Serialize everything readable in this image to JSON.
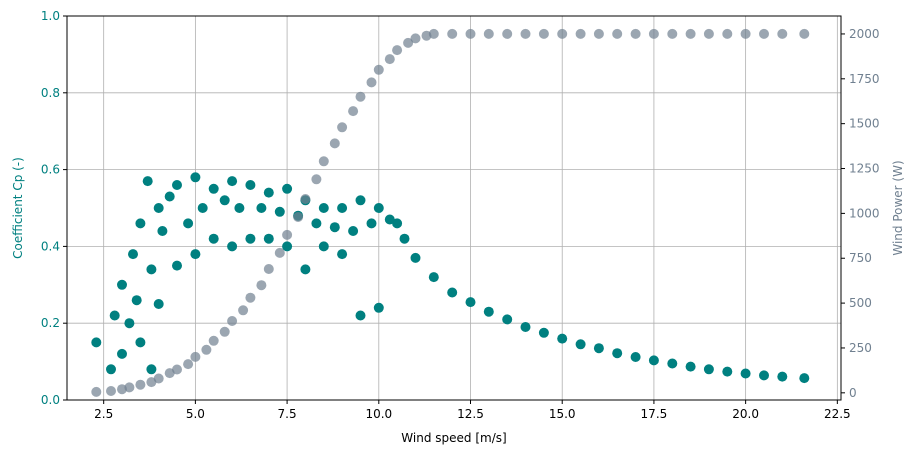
{
  "chart_data": {
    "type": "scatter",
    "title": "",
    "xlabel": "Wind speed [m/s]",
    "ylabel_left": "Coefficient Cp (-)",
    "ylabel_right": "Wind Power (W)",
    "xlim": [
      1.5,
      22.6
    ],
    "ylim_left": [
      0,
      1
    ],
    "ylim_right": [
      -40,
      2100
    ],
    "xticks": [
      "2.5",
      "5.0",
      "7.5",
      "10.0",
      "12.5",
      "15.0",
      "17.5",
      "20.0",
      "22.5"
    ],
    "yticks_left": [
      "0.0",
      "0.2",
      "0.4",
      "0.6",
      "0.8",
      "1.0"
    ],
    "yticks_right": [
      "0",
      "250",
      "500",
      "750",
      "1000",
      "1250",
      "1500",
      "1750",
      "2000"
    ],
    "grid": true,
    "colors": {
      "cp_series": "#008080",
      "power_series": "#708090",
      "left_axis": "#008080",
      "right_axis": "#708090"
    },
    "series": [
      {
        "axis": "left",
        "color": "#008080",
        "x": [
          2.3,
          2.7,
          2.8,
          3.0,
          3.0,
          3.2,
          3.3,
          3.4,
          3.5,
          3.5,
          3.7,
          3.8,
          3.8,
          4.0,
          4.0,
          4.1,
          4.3,
          4.5,
          4.5,
          4.8,
          5.0,
          5.0,
          5.2,
          5.5,
          5.5,
          5.8,
          6.0,
          6.0,
          6.2,
          6.5,
          6.5,
          6.8,
          7.0,
          7.0,
          7.3,
          7.5,
          7.5,
          7.8,
          8.0,
          8.0,
          8.3,
          8.5,
          8.5,
          8.8,
          9.0,
          9.0,
          9.3,
          9.5,
          9.5,
          9.8,
          10.0,
          10.0,
          10.3,
          10.5,
          10.7,
          11.0,
          11.5,
          12.0,
          12.5,
          13.0,
          13.5,
          14.0,
          14.5,
          15.0,
          15.5,
          16.0,
          16.5,
          17.0,
          17.5,
          18.0,
          18.5,
          19.0,
          19.5,
          20.0,
          20.5,
          21.0,
          21.6
        ],
        "y": [
          0.15,
          0.08,
          0.22,
          0.12,
          0.3,
          0.2,
          0.38,
          0.26,
          0.46,
          0.15,
          0.57,
          0.34,
          0.08,
          0.5,
          0.25,
          0.44,
          0.53,
          0.35,
          0.56,
          0.46,
          0.58,
          0.38,
          0.5,
          0.55,
          0.42,
          0.52,
          0.57,
          0.4,
          0.5,
          0.56,
          0.42,
          0.5,
          0.54,
          0.42,
          0.49,
          0.55,
          0.4,
          0.48,
          0.52,
          0.34,
          0.46,
          0.5,
          0.4,
          0.45,
          0.5,
          0.38,
          0.44,
          0.52,
          0.22,
          0.46,
          0.5,
          0.24,
          0.47,
          0.46,
          0.42,
          0.37,
          0.32,
          0.28,
          0.255,
          0.23,
          0.21,
          0.19,
          0.175,
          0.16,
          0.145,
          0.135,
          0.122,
          0.112,
          0.103,
          0.095,
          0.087,
          0.08,
          0.074,
          0.069,
          0.064,
          0.061,
          0.057
        ]
      },
      {
        "axis": "right",
        "color": "#708090",
        "x": [
          2.3,
          2.7,
          3.0,
          3.2,
          3.5,
          3.8,
          4.0,
          4.3,
          4.5,
          4.8,
          5.0,
          5.3,
          5.5,
          5.8,
          6.0,
          6.3,
          6.5,
          6.8,
          7.0,
          7.3,
          7.5,
          7.8,
          8.0,
          8.3,
          8.5,
          8.8,
          9.0,
          9.3,
          9.5,
          9.8,
          10.0,
          10.3,
          10.5,
          10.8,
          11.0,
          11.3,
          11.5,
          12.0,
          12.5,
          13.0,
          13.5,
          14.0,
          14.5,
          15.0,
          15.5,
          16.0,
          16.5,
          17.0,
          17.5,
          18.0,
          18.5,
          19.0,
          19.5,
          20.0,
          20.5,
          21.0,
          21.6
        ],
        "y": [
          5,
          10,
          20,
          30,
          45,
          60,
          80,
          110,
          130,
          160,
          200,
          240,
          290,
          340,
          400,
          460,
          530,
          600,
          690,
          780,
          880,
          980,
          1080,
          1190,
          1290,
          1390,
          1480,
          1570,
          1650,
          1730,
          1800,
          1860,
          1910,
          1950,
          1975,
          1990,
          2000,
          2000,
          2000,
          2000,
          2000,
          2000,
          2000,
          2000,
          2000,
          2000,
          2000,
          2000,
          2000,
          2000,
          2000,
          2000,
          2000,
          2000,
          2000,
          2000,
          2000
        ]
      }
    ]
  }
}
